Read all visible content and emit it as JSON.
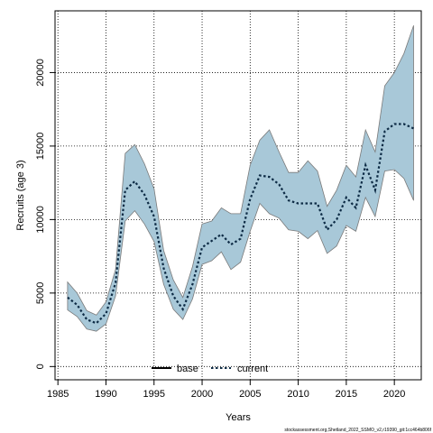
{
  "chart_data": {
    "type": "line",
    "title": "",
    "xlabel": "Years",
    "ylabel": "Recruits (age 3)",
    "xlim": [
      1984.7,
      2022.8
    ],
    "ylim": [
      -900,
      24200
    ],
    "x_ticks": [
      1985,
      1990,
      1995,
      2000,
      2005,
      2010,
      2015,
      2020
    ],
    "y_ticks": [
      0,
      5000,
      10000,
      15000,
      20000
    ],
    "grid": true,
    "legend_position": "bottom-center",
    "x": [
      1986,
      1987,
      1988,
      1989,
      1990,
      1991,
      1992,
      1993,
      1994,
      1995,
      1996,
      1997,
      1998,
      1999,
      2000,
      2001,
      2002,
      2003,
      2004,
      2005,
      2006,
      2007,
      2008,
      2009,
      2010,
      2011,
      2012,
      2013,
      2014,
      2015,
      2016,
      2017,
      2018,
      2019,
      2020,
      2021,
      2022
    ],
    "band": {
      "color": "#a8c8d8",
      "edge_color": "#7a7a7a",
      "lower": [
        3850,
        3400,
        2550,
        2400,
        2900,
        4800,
        9900,
        10600,
        9700,
        8500,
        5600,
        3900,
        3200,
        4600,
        6950,
        7200,
        7800,
        6600,
        7100,
        9200,
        11100,
        10400,
        10100,
        9300,
        9200,
        8700,
        9250,
        7700,
        8200,
        9600,
        9200,
        11500,
        10200,
        13300,
        13400,
        12800,
        11300
      ],
      "upper": [
        5750,
        5000,
        3800,
        3500,
        4400,
        6600,
        14500,
        15100,
        13800,
        12100,
        7900,
        5900,
        4700,
        6800,
        9700,
        9900,
        10800,
        10400,
        10400,
        13700,
        15400,
        16100,
        14600,
        13200,
        13200,
        14000,
        13300,
        10900,
        12000,
        13700,
        12900,
        16100,
        14600,
        19100,
        20000,
        21300,
        23200
      ]
    },
    "series": [
      {
        "name": "base",
        "color": "#000000",
        "style": "solid",
        "draw_line": false,
        "values": [
          4700,
          4200,
          3200,
          2950,
          3600,
          5700,
          12000,
          12600,
          11700,
          10200,
          6700,
          4800,
          3900,
          5600,
          8100,
          8550,
          9000,
          8300,
          8700,
          11400,
          13000,
          12900,
          12400,
          11300,
          11100,
          11100,
          11100,
          9300,
          10000,
          11500,
          10800,
          13700,
          12000,
          16000,
          16500,
          16500,
          16200
        ]
      },
      {
        "name": "current",
        "color": "#0d2b45",
        "style": "dotted",
        "draw_line": true,
        "values": [
          4700,
          4200,
          3200,
          2950,
          3600,
          5700,
          12000,
          12600,
          11700,
          10200,
          6700,
          4800,
          3900,
          5600,
          8100,
          8550,
          9000,
          8300,
          8700,
          11400,
          13000,
          12900,
          12400,
          11300,
          11100,
          11100,
          11100,
          9300,
          10000,
          11500,
          10800,
          13700,
          12000,
          16000,
          16500,
          16500,
          16200
        ]
      }
    ]
  },
  "footnote": "stockassessment.org,Shetland_2022_SSMO_v2,r19390_git:1cc464b806f"
}
